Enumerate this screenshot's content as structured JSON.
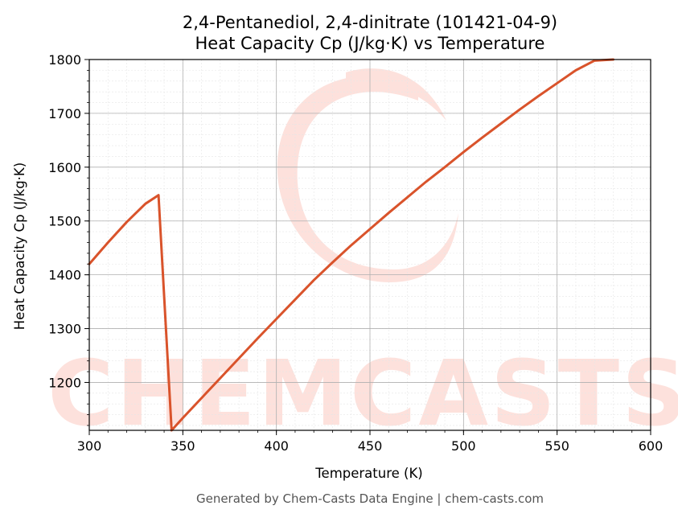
{
  "chart_data": {
    "type": "line",
    "title": "2,4-Pentanediol, 2,4-dinitrate (101421-04-9)",
    "subtitle": "Heat Capacity Cp (J/kg·K) vs Temperature",
    "xlabel": "Temperature (K)",
    "ylabel": "Heat Capacity Cp (J/kg·K)",
    "xlim": [
      300,
      600
    ],
    "ylim": [
      1111,
      1800
    ],
    "xticks": [
      300,
      350,
      400,
      450,
      500,
      550,
      600
    ],
    "yticks": [
      1200,
      1300,
      1400,
      1500,
      1600,
      1700,
      1800
    ],
    "grid": true,
    "color": "#d9532b",
    "series": [
      {
        "values": [
          [
            300,
            1420
          ],
          [
            310,
            1460
          ],
          [
            320,
            1498
          ],
          [
            330,
            1532
          ],
          [
            337,
            1548
          ],
          [
            344,
            1111
          ],
          [
            350,
            1134
          ],
          [
            360,
            1171
          ],
          [
            370,
            1208
          ],
          [
            380,
            1245
          ],
          [
            390,
            1282
          ],
          [
            400,
            1318
          ],
          [
            410,
            1354
          ],
          [
            420,
            1390
          ],
          [
            430,
            1423
          ],
          [
            440,
            1455
          ],
          [
            450,
            1485
          ],
          [
            460,
            1515
          ],
          [
            470,
            1544
          ],
          [
            480,
            1573
          ],
          [
            490,
            1600
          ],
          [
            500,
            1628
          ],
          [
            510,
            1655
          ],
          [
            520,
            1681
          ],
          [
            530,
            1707
          ],
          [
            540,
            1732
          ],
          [
            550,
            1756
          ],
          [
            560,
            1780
          ],
          [
            570,
            1798
          ],
          [
            580,
            1800
          ]
        ]
      }
    ]
  },
  "watermark": "CHEMCASTS",
  "footer": "Generated by Chem-Casts Data Engine | chem-casts.com"
}
